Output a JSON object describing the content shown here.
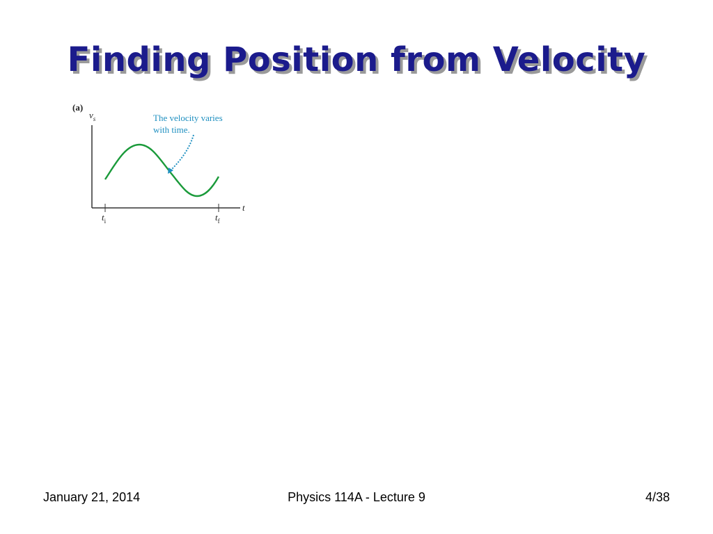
{
  "slide": {
    "title": "Finding Position from Velocity"
  },
  "figure": {
    "panel_label": "(a)",
    "y_axis_symbol": "v",
    "y_axis_subscript": "s",
    "x_axis_symbol": "t",
    "tick_start_symbol": "t",
    "tick_start_subscript": "i",
    "tick_end_symbol": "t",
    "tick_end_subscript": "f",
    "annotation_line1": "The velocity varies",
    "annotation_line2": "with time.",
    "curve_color": "#1a9a3a",
    "annotation_color": "#1e8fc0"
  },
  "footer": {
    "date": "January 21, 2014",
    "course": "Physics 114A  -  Lecture 9",
    "page": "4/38"
  }
}
